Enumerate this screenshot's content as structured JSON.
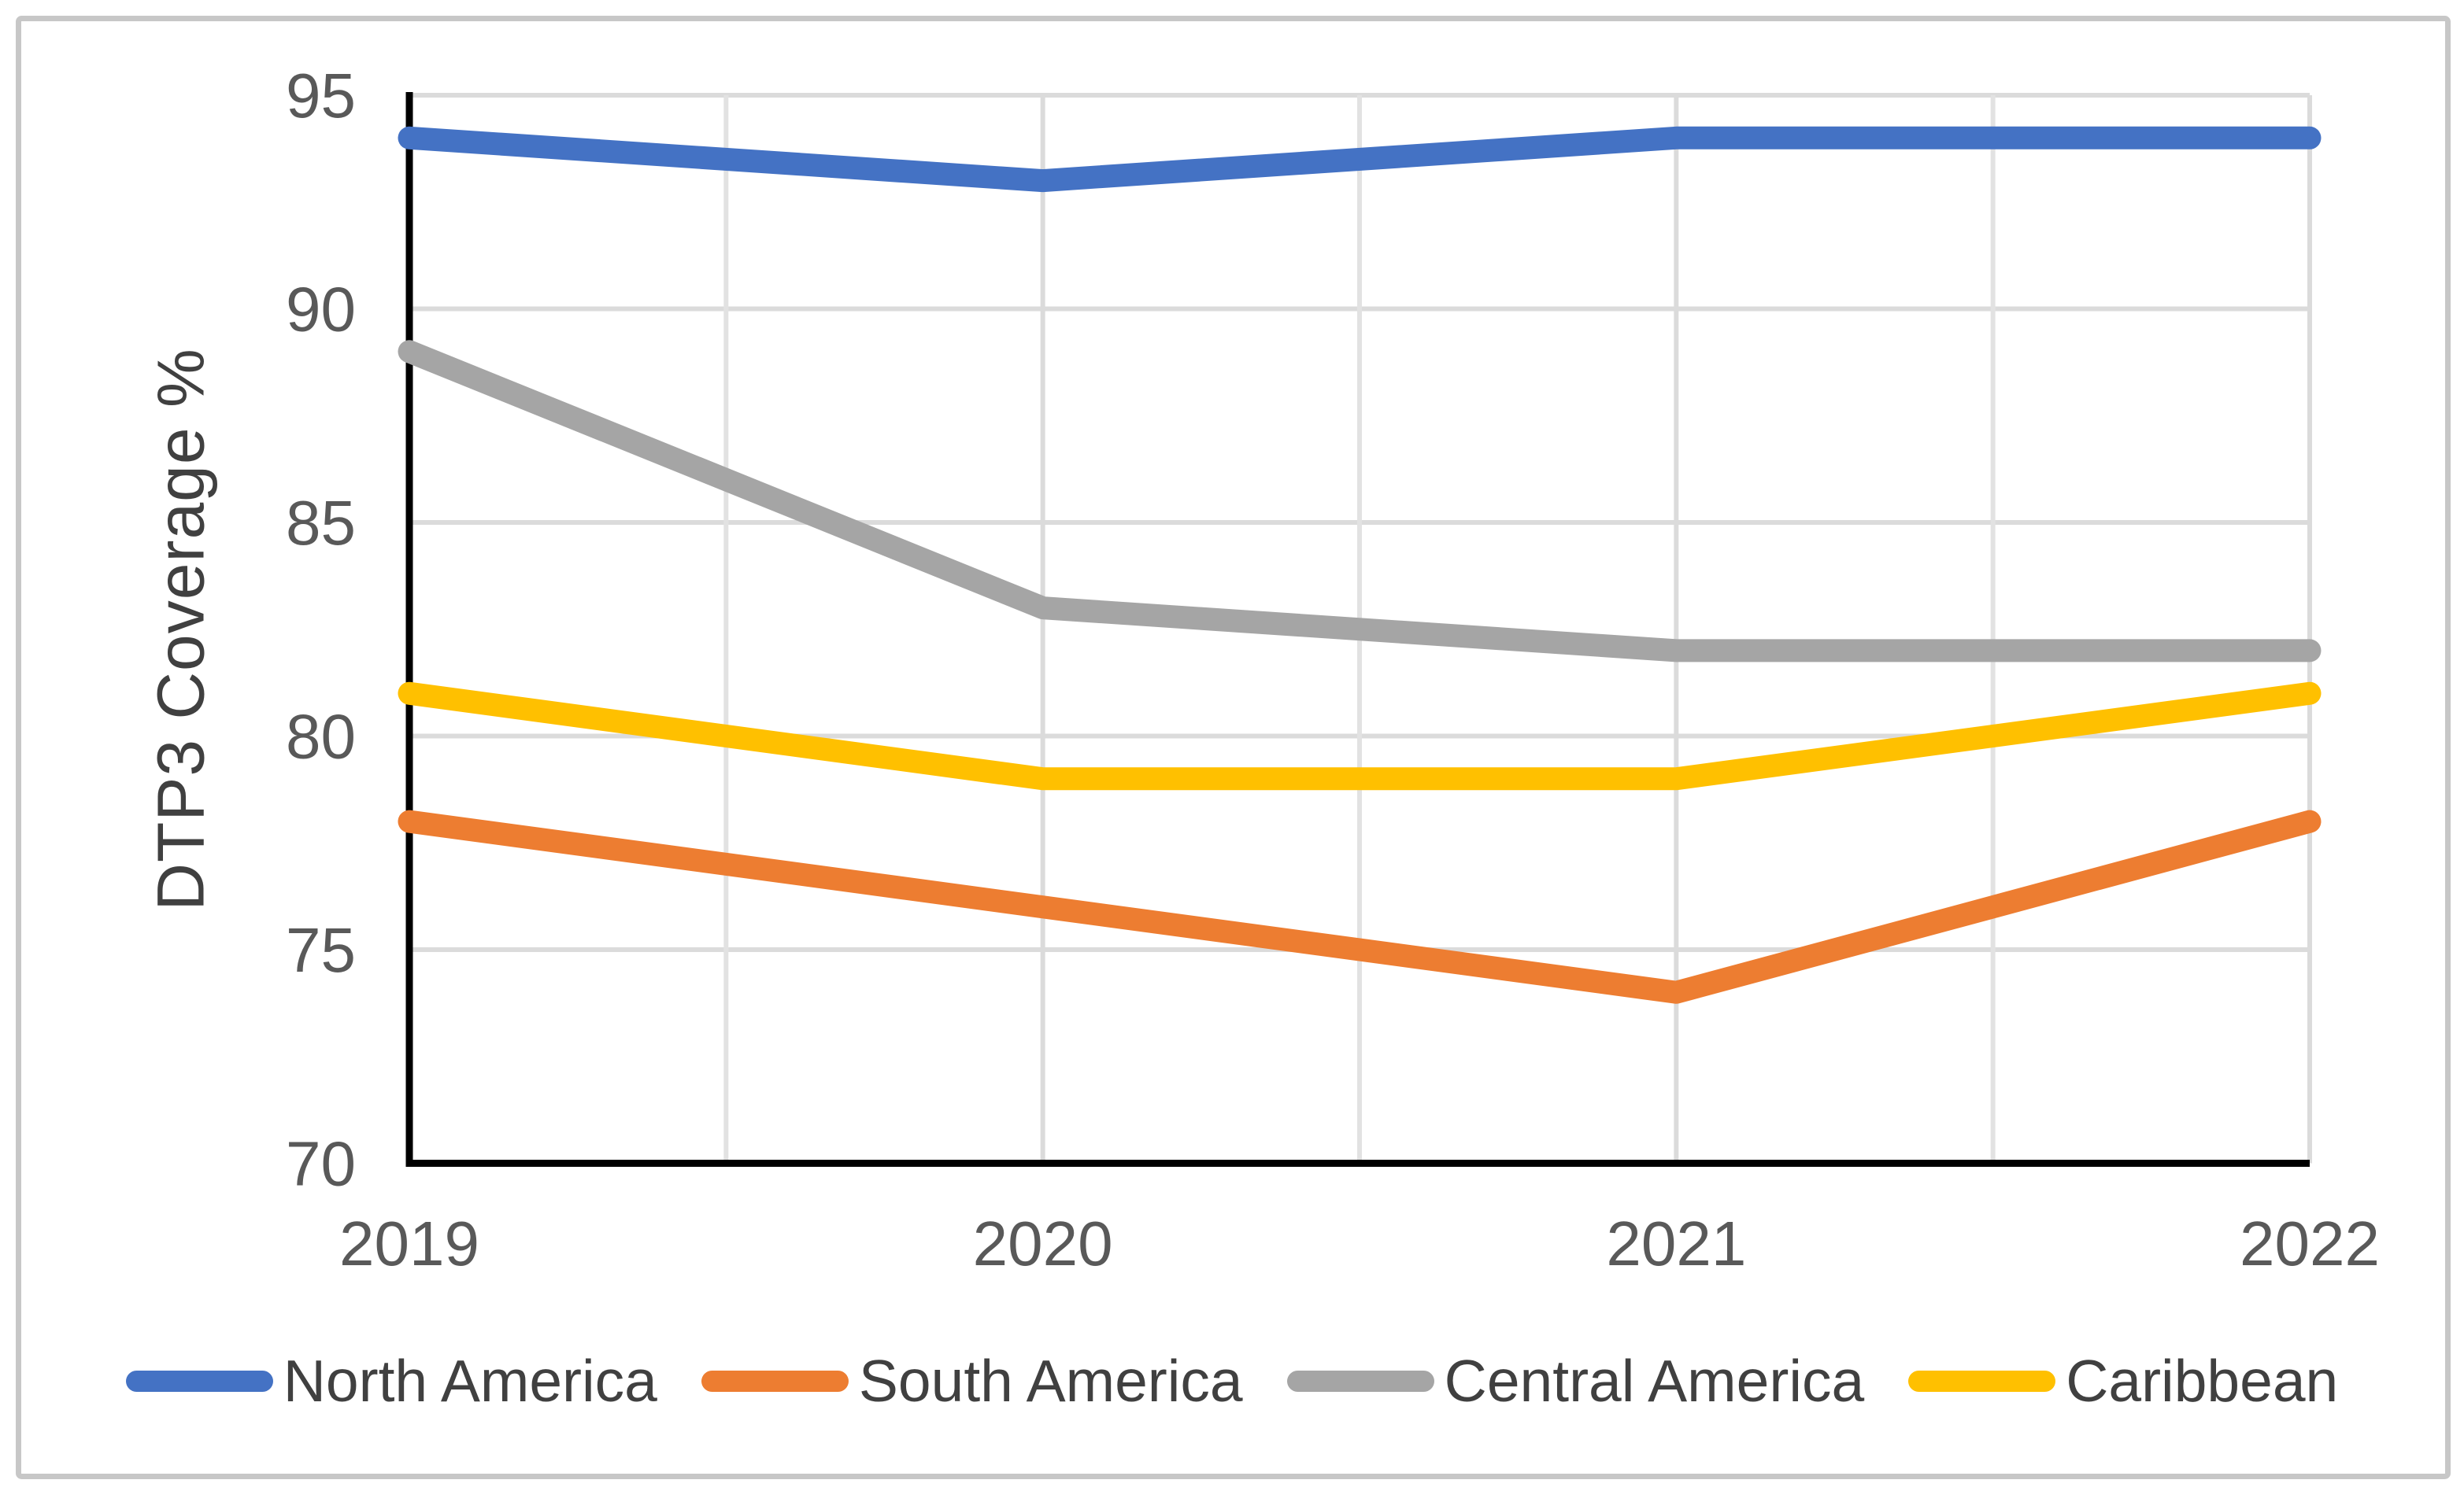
{
  "figure": {
    "background_color": "#ffffff",
    "border_color": "#c7c7c7"
  },
  "chart_data": {
    "type": "line",
    "title": "",
    "xlabel": "",
    "ylabel": "DTP3 Coverage %",
    "categories": [
      "2019",
      "2020",
      "2021",
      "2022"
    ],
    "series": [
      {
        "name": "North America",
        "color": "#4472C4",
        "values": [
          94,
          93,
          94,
          94
        ]
      },
      {
        "name": "South America",
        "color": "#ED7D31",
        "values": [
          78,
          76,
          74,
          78
        ]
      },
      {
        "name": "Central America",
        "color": "#A5A5A5",
        "values": [
          89,
          83,
          82,
          82
        ]
      },
      {
        "name": "Caribbean",
        "color": "#FFC000",
        "values": [
          81,
          79,
          79,
          81
        ]
      }
    ],
    "ylim": [
      70,
      95
    ],
    "yticks": [
      70,
      75,
      80,
      85,
      90,
      95
    ],
    "grid": true,
    "minor_vertical_gridlines_per_interval": 2,
    "legend_position": "bottom",
    "axis_color": "#000000",
    "major_gridline_color": "#DBDBDB",
    "minor_gridline_color": "#E2E2E2",
    "tick_label_color": "#595959",
    "axis_title_color": "#404040",
    "legend_text_color": "#404040"
  }
}
